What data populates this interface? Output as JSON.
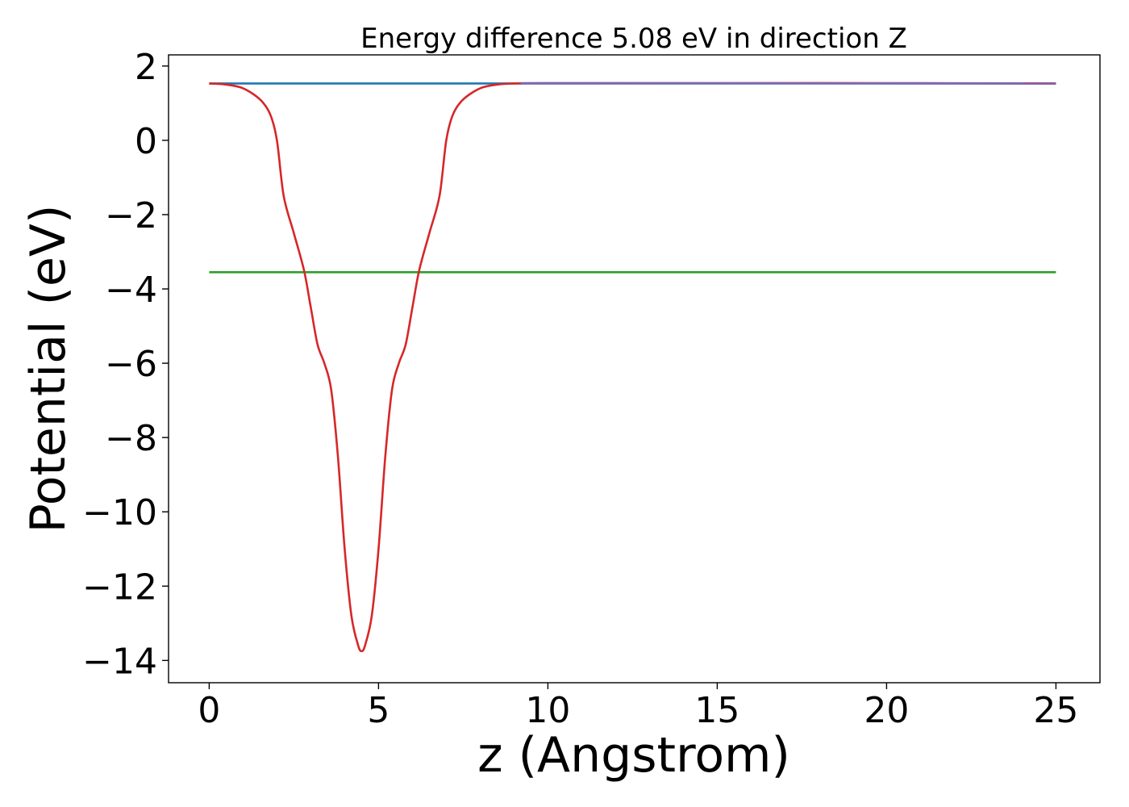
{
  "chart_data": {
    "type": "line",
    "title": "Energy difference 5.08 eV in direction Z",
    "xlabel": "z (Angstrom)",
    "ylabel": "Potential (eV)",
    "xlim": [
      -1.2,
      26.3
    ],
    "ylim": [
      -14.6,
      2.3
    ],
    "x_ticks": [
      0,
      5,
      10,
      15,
      20,
      25
    ],
    "x_tick_labels": [
      "0",
      "5",
      "10",
      "15",
      "20",
      "25"
    ],
    "y_ticks": [
      2,
      0,
      -2,
      -4,
      -6,
      -8,
      -10,
      -12,
      -14
    ],
    "y_tick_labels": [
      "2",
      "0",
      "−2",
      "−4",
      "−6",
      "−8",
      "−10",
      "−12",
      "−14"
    ],
    "grid": false,
    "series": [
      {
        "color": "#1f77b4",
        "x": [
          0,
          25
        ],
        "y": [
          1.53,
          1.53
        ]
      },
      {
        "color": "#2ca02c",
        "x": [
          0,
          25
        ],
        "y": [
          -3.55,
          -3.55
        ]
      },
      {
        "color": "#d62728",
        "x": [
          0,
          0.5,
          1.0,
          1.5,
          1.8,
          2.0,
          2.2,
          2.5,
          2.8,
          3.0,
          3.2,
          3.4,
          3.6,
          3.8,
          4.0,
          4.2,
          4.4,
          4.5,
          4.6,
          4.8,
          5.0,
          5.2,
          5.4,
          5.6,
          5.8,
          6.0,
          6.2,
          6.5,
          6.8,
          7.0,
          7.2,
          7.5,
          8.0,
          8.5,
          9.0,
          10.0,
          12.0,
          15.0,
          20.0,
          25.0
        ],
        "y": [
          1.53,
          1.5,
          1.4,
          1.1,
          0.7,
          0.0,
          -1.5,
          -2.5,
          -3.5,
          -4.5,
          -5.5,
          -6.0,
          -6.7,
          -8.5,
          -11.0,
          -12.8,
          -13.6,
          -13.75,
          -13.6,
          -12.8,
          -11.0,
          -8.5,
          -6.7,
          -6.0,
          -5.5,
          -4.5,
          -3.5,
          -2.5,
          -1.5,
          0.0,
          0.7,
          1.1,
          1.4,
          1.5,
          1.53,
          1.54,
          1.54,
          1.54,
          1.54,
          1.53
        ]
      },
      {
        "color": "#7b68b3",
        "x": [
          9.2,
          25
        ],
        "y": [
          1.54,
          1.53
        ]
      }
    ]
  }
}
